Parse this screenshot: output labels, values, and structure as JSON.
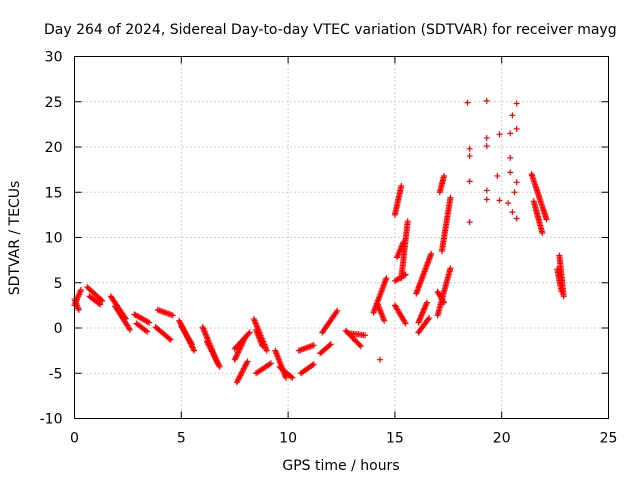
{
  "chart_data": {
    "type": "scatter",
    "title": "Day 264 of 2024, Sidereal Day-to-day VTEC variation (SDTVAR) for receiver mayg",
    "xlabel": "GPS time / hours",
    "ylabel": "SDTVAR / TECUs",
    "xlim": [
      0,
      25
    ],
    "ylim": [
      -10,
      30
    ],
    "xticks": [
      0,
      5,
      10,
      15,
      20,
      25
    ],
    "yticks": [
      -10,
      -5,
      0,
      5,
      10,
      15,
      20,
      25,
      30
    ],
    "grid": true,
    "marker": "+",
    "color": "#ff0000",
    "segments": [
      [
        0.0,
        2.5,
        0.3,
        4.2
      ],
      [
        0.0,
        3.2,
        0.2,
        2.0
      ],
      [
        0.6,
        4.5,
        1.3,
        3.0
      ],
      [
        0.7,
        3.5,
        1.2,
        2.6
      ],
      [
        1.7,
        3.5,
        2.4,
        1.0
      ],
      [
        1.9,
        2.4,
        2.6,
        -0.2
      ],
      [
        2.8,
        1.5,
        3.5,
        0.6
      ],
      [
        2.9,
        0.5,
        3.4,
        -0.4
      ],
      [
        3.9,
        2.0,
        4.6,
        1.4
      ],
      [
        3.8,
        0.1,
        4.5,
        -1.3
      ],
      [
        4.9,
        0.8,
        5.6,
        -2.5
      ],
      [
        5.0,
        0.2,
        5.5,
        -1.8
      ],
      [
        6.0,
        0.1,
        6.7,
        -3.9
      ],
      [
        6.2,
        -1.5,
        6.8,
        -4.3
      ],
      [
        7.5,
        -2.3,
        8.2,
        -0.5
      ],
      [
        7.5,
        -3.5,
        8.0,
        -1.0
      ],
      [
        7.6,
        -6.0,
        8.1,
        -3.7
      ],
      [
        8.4,
        1.0,
        9.0,
        -2.5
      ],
      [
        8.5,
        -0.2,
        8.8,
        -2.0
      ],
      [
        8.5,
        -5.0,
        9.2,
        -3.9
      ],
      [
        9.4,
        -2.5,
        9.9,
        -5.5
      ],
      [
        9.6,
        -4.3,
        10.2,
        -5.5
      ],
      [
        10.5,
        -2.5,
        11.2,
        -1.9
      ],
      [
        10.6,
        -5.0,
        11.2,
        -4.0
      ],
      [
        11.5,
        -2.8,
        12.0,
        -1.8
      ],
      [
        11.6,
        -0.5,
        12.3,
        1.9
      ],
      [
        12.7,
        -0.3,
        13.4,
        -2.0
      ],
      [
        12.9,
        -0.6,
        13.6,
        -0.8
      ],
      [
        14.0,
        1.7,
        14.6,
        5.5
      ],
      [
        14.2,
        2.6,
        14.5,
        0.8
      ],
      [
        15.0,
        12.5,
        15.3,
        15.7
      ],
      [
        15.0,
        2.5,
        15.5,
        0.5
      ],
      [
        15.0,
        5.2,
        15.5,
        5.9
      ],
      [
        15.1,
        7.8,
        15.4,
        9.5
      ],
      [
        15.3,
        5.5,
        15.6,
        11.8
      ],
      [
        16.1,
        -0.5,
        16.6,
        1.1
      ],
      [
        16.0,
        3.8,
        16.7,
        8.2
      ],
      [
        16.1,
        0.6,
        16.5,
        2.8
      ],
      [
        17.0,
        1.4,
        17.6,
        6.6
      ],
      [
        17.0,
        4.0,
        17.3,
        2.8
      ],
      [
        17.2,
        8.5,
        17.6,
        14.4
      ],
      [
        17.1,
        15.0,
        17.3,
        16.8
      ],
      [
        21.4,
        17.0,
        22.1,
        12.0
      ],
      [
        21.5,
        14.0,
        21.9,
        10.5
      ],
      [
        22.7,
        8.0,
        22.9,
        3.5
      ],
      [
        22.6,
        6.5,
        22.8,
        4.0
      ]
    ],
    "points": [
      [
        18.4,
        24.9
      ],
      [
        19.3,
        25.1
      ],
      [
        20.7,
        24.8
      ],
      [
        18.5,
        19.8
      ],
      [
        18.5,
        19.0
      ],
      [
        18.5,
        16.2
      ],
      [
        18.5,
        11.7
      ],
      [
        19.3,
        21.0
      ],
      [
        19.3,
        20.1
      ],
      [
        19.3,
        15.2
      ],
      [
        19.3,
        14.2
      ],
      [
        19.8,
        16.8
      ],
      [
        19.9,
        14.1
      ],
      [
        19.9,
        21.4
      ],
      [
        20.4,
        21.5
      ],
      [
        20.3,
        13.8
      ],
      [
        20.4,
        17.2
      ],
      [
        20.4,
        18.8
      ],
      [
        20.5,
        23.5
      ],
      [
        20.7,
        22.0
      ],
      [
        20.7,
        16.1
      ],
      [
        20.6,
        15.0
      ],
      [
        20.5,
        12.8
      ],
      [
        20.7,
        12.1
      ],
      [
        14.3,
        -3.5
      ]
    ]
  }
}
